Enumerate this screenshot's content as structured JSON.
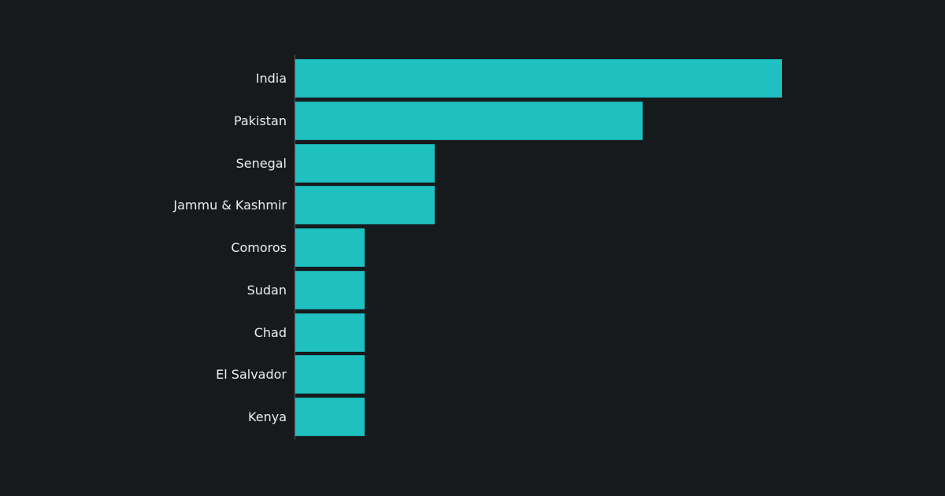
{
  "chart_data": {
    "type": "bar",
    "orientation": "horizontal",
    "title": "",
    "xlabel": "",
    "ylabel": "",
    "value_note": "No axis ticks or value labels are shown. Values are relative bar lengths, estimated from pixel widths in units of the shortest bar (=1).",
    "categories": [
      "India",
      "Pakistan",
      "Senegal",
      "Jammu & Kashmir",
      "Comoros",
      "Sudan",
      "Chad",
      "El Salvador",
      "Kenya"
    ],
    "values": [
      7,
      5,
      2,
      2,
      1,
      1,
      1,
      1,
      1
    ],
    "xlim": [
      0,
      7
    ],
    "grid": false,
    "legend": null,
    "bar_color": "#1fc0c0",
    "background_color": "#171a1d",
    "label_color": "#eceef0"
  }
}
